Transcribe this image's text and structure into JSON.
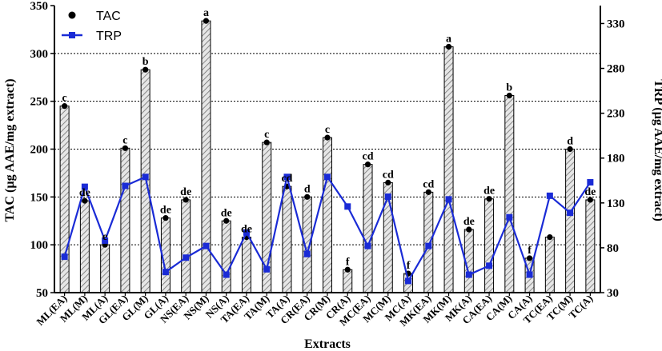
{
  "chart_data": {
    "type": "bar",
    "xlabel": "Extracts",
    "ylabel": "TAC (µg AAE/mg extract)",
    "y2label": "TRP (µg AAE/mg extract)",
    "ylim": [
      50,
      350
    ],
    "y2lim": [
      30,
      350
    ],
    "yticks": [
      50,
      100,
      150,
      200,
      250,
      300,
      350
    ],
    "y2ticks": [
      30,
      80,
      130,
      180,
      230,
      280,
      330
    ],
    "grid": "horizontal dotted",
    "legend_position": "top-left",
    "categories": [
      "ML(EA)",
      "ML(M)",
      "ML(A)",
      "GL(EA)",
      "GL(M)",
      "GL(A)",
      "NS(EA)",
      "NS(M)",
      "NS(A)",
      "TA(EA)",
      "TA(M)",
      "TA(A)",
      "CR(EA)",
      "CR(M)",
      "CR(A)",
      "MC(EA)",
      "MC(M)",
      "MC(A)",
      "MK(EA)",
      "MK(M)",
      "MK(A)",
      "CA(EA)",
      "CA(M)",
      "CA(A)",
      "TC(EA)",
      "TC(M)",
      "TC(A)"
    ],
    "series": [
      {
        "name": "TAC",
        "axis": "left",
        "style": "bar-with-dot",
        "values": [
          245,
          146,
          100,
          201,
          283,
          128,
          147,
          334,
          125,
          108,
          207,
          161,
          150,
          212,
          74,
          184,
          165,
          70,
          155,
          307,
          116,
          148,
          256,
          86,
          108,
          200,
          147
        ],
        "labels": [
          "c",
          "de",
          "e",
          "c",
          "b",
          "de",
          "de",
          "a",
          "de",
          "de",
          "c",
          "cd",
          "d",
          "c",
          "f",
          "cd",
          "cd",
          "f",
          "cd",
          "a",
          "de",
          "de",
          "b",
          "f",
          "",
          "d",
          "de"
        ]
      },
      {
        "name": "TRP",
        "axis": "right",
        "style": "line-with-square",
        "color": "#1a2bd6",
        "values": [
          70,
          148,
          88,
          149,
          159,
          53,
          69,
          82,
          50,
          97,
          56,
          159,
          73,
          159,
          126,
          82,
          137,
          43,
          82,
          134,
          50,
          60,
          114,
          50,
          138,
          119,
          153
        ]
      }
    ]
  }
}
